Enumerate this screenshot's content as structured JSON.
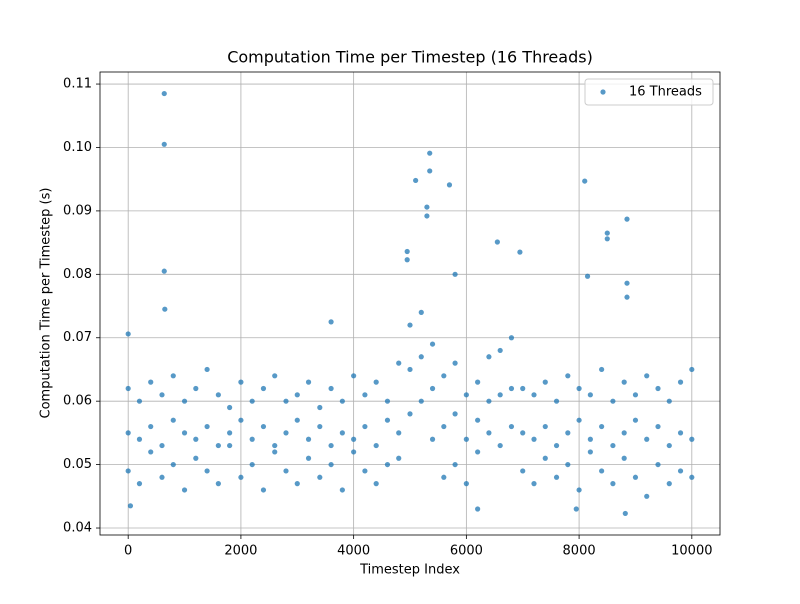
{
  "chart_data": {
    "type": "scatter",
    "title": "Computation Time per Timestep (16 Threads)",
    "xlabel": "Timestep Index",
    "ylabel": "Computation Time per Timestep (s)",
    "xlim": [
      -500,
      10500
    ],
    "ylim": [
      0.0389,
      0.1119
    ],
    "xticks": [
      0,
      2000,
      4000,
      6000,
      8000,
      10000
    ],
    "yticks": [
      0.04,
      0.05,
      0.06,
      0.07,
      0.08,
      0.09,
      {
        "value": 0.1,
        "label": "0.10"
      },
      0.11
    ],
    "grid": true,
    "legend": "upper right",
    "series": [
      {
        "name": "16 Threads",
        "color": "#1f77b4",
        "x": [
          0,
          200,
          400,
          600,
          800,
          1000,
          1200,
          1400,
          1600,
          1800,
          2000,
          2200,
          2400,
          2600,
          2800,
          3000,
          3200,
          3400,
          3600,
          3800,
          4000,
          4200,
          4400,
          4600,
          4800,
          5000,
          5200,
          5400,
          5600,
          5800,
          6000,
          6200,
          6400,
          6600,
          6800,
          7000,
          7200,
          7400,
          7600,
          7800,
          8000,
          8200,
          8400,
          8600,
          8800,
          9000,
          9200,
          9400,
          9600,
          9800,
          10000,
          0,
          200,
          400,
          600,
          800,
          1000,
          1200,
          1400,
          1600,
          1800,
          2000,
          2200,
          2400,
          2600,
          2800,
          3000,
          3200,
          3400,
          3600,
          3800,
          4000,
          4200,
          4400,
          4600,
          4800,
          5000,
          5200,
          5400,
          5600,
          5800,
          6000,
          6200,
          6400,
          6600,
          6800,
          7000,
          7200,
          7400,
          7600,
          7800,
          8000,
          8200,
          8400,
          8600,
          8800,
          9000,
          9200,
          9400,
          9600,
          9800,
          10000,
          0,
          200,
          400,
          600,
          800,
          1000,
          1200,
          1400,
          1600,
          1800,
          2000,
          2200,
          2400,
          2600,
          2800,
          3000,
          3200,
          3400,
          3600,
          3800,
          4000,
          4200,
          4400,
          4600,
          4800,
          5000,
          5200,
          5400,
          5600,
          5800,
          6000,
          6200,
          6400,
          6600,
          6800,
          7000,
          7200,
          7400,
          7600,
          7800,
          8000,
          8200,
          8400,
          8600,
          8800,
          9000,
          9200,
          9400,
          9600,
          9800,
          10000,
          640,
          640,
          640,
          650,
          8100,
          5350,
          5350,
          5100,
          5700,
          6550,
          6950,
          8500,
          8500,
          8850,
          8850,
          8850,
          8150,
          5300,
          5300,
          5800,
          3600,
          0,
          4950,
          4950,
          40,
          8820,
          7950,
          6200
        ],
        "values": [
          0.049,
          0.047,
          0.052,
          0.048,
          0.05,
          0.046,
          0.051,
          0.049,
          0.047,
          0.053,
          0.048,
          0.05,
          0.046,
          0.052,
          0.049,
          0.047,
          0.051,
          0.048,
          0.05,
          0.046,
          0.052,
          0.049,
          0.047,
          0.05,
          0.051,
          0.058,
          0.06,
          0.054,
          0.048,
          0.05,
          0.047,
          0.052,
          0.055,
          0.053,
          0.056,
          0.049,
          0.047,
          0.051,
          0.048,
          0.05,
          0.046,
          0.052,
          0.049,
          0.047,
          0.051,
          0.048,
          0.045,
          0.05,
          0.047,
          0.049,
          0.048,
          0.055,
          0.054,
          0.056,
          0.053,
          0.057,
          0.055,
          0.054,
          0.056,
          0.053,
          0.055,
          0.057,
          0.054,
          0.056,
          0.053,
          0.055,
          0.057,
          0.054,
          0.056,
          0.053,
          0.055,
          0.054,
          0.056,
          0.053,
          0.057,
          0.055,
          0.065,
          0.067,
          0.062,
          0.056,
          0.058,
          0.054,
          0.057,
          0.06,
          0.061,
          0.062,
          0.055,
          0.054,
          0.056,
          0.053,
          0.055,
          0.057,
          0.054,
          0.056,
          0.053,
          0.055,
          0.057,
          0.054,
          0.056,
          0.053,
          0.055,
          0.054,
          0.062,
          0.06,
          0.063,
          0.061,
          0.064,
          0.06,
          0.062,
          0.065,
          0.061,
          0.059,
          0.063,
          0.06,
          0.062,
          0.064,
          0.06,
          0.061,
          0.063,
          0.059,
          0.062,
          0.06,
          0.064,
          0.061,
          0.063,
          0.06,
          0.066,
          0.072,
          0.074,
          0.069,
          0.064,
          0.066,
          0.061,
          0.063,
          0.067,
          0.068,
          0.07,
          0.062,
          0.061,
          0.063,
          0.06,
          0.064,
          0.062,
          0.061,
          0.065,
          0.06,
          0.063,
          0.061,
          0.064,
          0.062,
          0.06,
          0.063,
          0.065,
          0.1085,
          0.1005,
          0.0805,
          0.0745,
          0.0947,
          0.0991,
          0.0963,
          0.0948,
          0.0941,
          0.0851,
          0.0835,
          0.0865,
          0.0856,
          0.0887,
          0.0786,
          0.0764,
          0.0797,
          0.0906,
          0.0892,
          0.08,
          0.0725,
          0.0706,
          0.0836,
          0.0823,
          0.0435,
          0.0423,
          0.043,
          0.043
        ]
      }
    ]
  }
}
